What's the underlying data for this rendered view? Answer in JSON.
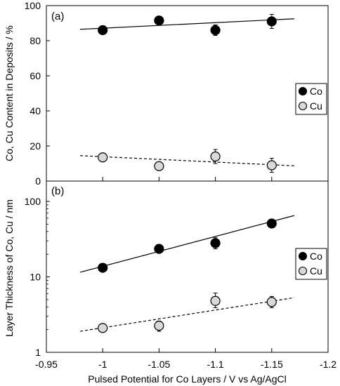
{
  "chart_data": [
    {
      "type": "scatter",
      "panel_label": "(a)",
      "ylabel": "Co, Cu Content in Deposits / %",
      "ylim": [
        0,
        100
      ],
      "y_ticks": [
        0,
        20,
        40,
        60,
        80,
        100
      ],
      "y_scale": "linear",
      "xlim": [
        -0.95,
        -1.2
      ],
      "legend_placement": "right",
      "series": [
        {
          "name": "Co",
          "marker": "filled",
          "color": "#000000",
          "x": [
            -1.0,
            -1.05,
            -1.1,
            -1.15
          ],
          "y": [
            86,
            91.5,
            86,
            91
          ],
          "err": [
            1.5,
            1.5,
            3,
            4
          ],
          "trend": {
            "style": "solid",
            "x": [
              -0.98,
              -1.17
            ],
            "y": [
              86.5,
              92.5
            ]
          }
        },
        {
          "name": "Cu",
          "marker": "open-gray",
          "color": "#d9d9d9",
          "x": [
            -1.0,
            -1.05,
            -1.1,
            -1.15
          ],
          "y": [
            13.5,
            8.5,
            14,
            9
          ],
          "err": [
            1.5,
            1.5,
            4,
            4
          ],
          "trend": {
            "style": "dashed",
            "x": [
              -0.98,
              -1.17
            ],
            "y": [
              14.5,
              8.7
            ]
          }
        }
      ]
    },
    {
      "type": "scatter",
      "panel_label": "(b)",
      "ylabel": "Layer Thickness of Co, Cu / nm",
      "ylim": [
        1,
        200
      ],
      "y_ticks": [
        1,
        10,
        100
      ],
      "y_scale": "log",
      "xlim": [
        -0.95,
        -1.2
      ],
      "legend_placement": "right",
      "series": [
        {
          "name": "Co",
          "marker": "filled",
          "color": "#000000",
          "x": [
            -1.0,
            -1.05,
            -1.1,
            -1.15
          ],
          "y": [
            13.2,
            23.5,
            28,
            51
          ],
          "err_low": [
            12.2,
            21.5,
            23.5,
            47
          ],
          "err_high": [
            14.2,
            25.5,
            33,
            55
          ],
          "trend": {
            "style": "solid",
            "x": [
              -0.98,
              -1.17
            ],
            "y": [
              11.5,
              65
            ]
          }
        },
        {
          "name": "Cu",
          "marker": "open-gray",
          "color": "#d9d9d9",
          "x": [
            -1.0,
            -1.05,
            -1.1,
            -1.15
          ],
          "y": [
            2.1,
            2.25,
            4.8,
            4.65
          ],
          "err_low": [
            1.95,
            1.9,
            3.9,
            3.9
          ],
          "err_high": [
            2.25,
            2.6,
            6.1,
            5.5
          ],
          "trend": {
            "style": "dashed",
            "x": [
              -0.98,
              -1.17
            ],
            "y": [
              1.9,
              5.3
            ]
          }
        }
      ]
    }
  ],
  "x_axis": {
    "label": "Pulsed Potential for Co Layers / V vs Ag/AgCl",
    "ticks": [
      -0.95,
      -1,
      -1.05,
      -1.1,
      -1.15,
      -1.2
    ],
    "tick_labels": [
      "-0.95",
      "-1",
      "-1.05",
      "-1.1",
      "-1.15",
      "-1.2"
    ]
  },
  "legend": {
    "items": [
      {
        "label": "Co",
        "marker": "filled"
      },
      {
        "label": "Cu",
        "marker": "open-gray"
      }
    ]
  }
}
